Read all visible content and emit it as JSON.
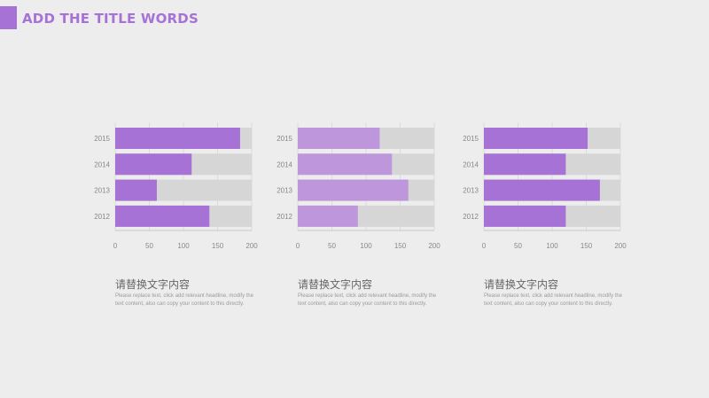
{
  "header": {
    "title": "ADD THE TITLE WORDS"
  },
  "colors": {
    "accent": "#a772d6",
    "track": "#d6d6d6",
    "axis": "#888888"
  },
  "chart_data": [
    {
      "type": "bar",
      "orientation": "horizontal",
      "categories": [
        "2015",
        "2014",
        "2013",
        "2012"
      ],
      "values": [
        183,
        112,
        61,
        138
      ],
      "xlim": [
        0,
        200
      ],
      "xticks": [
        0,
        50,
        100,
        150,
        200
      ],
      "bar_color": "#a772d6",
      "track_color": "#d6d6d6",
      "caption": {
        "title": "请替换文字内容",
        "body": "Please replace text, click add relevant headline, modify the text content, also can copy your content to this directly."
      }
    },
    {
      "type": "bar",
      "orientation": "horizontal",
      "categories": [
        "2015",
        "2014",
        "2013",
        "2012"
      ],
      "values": [
        120,
        138,
        162,
        88
      ],
      "xlim": [
        0,
        200
      ],
      "xticks": [
        0,
        50,
        100,
        150,
        200
      ],
      "bar_color": "#bd96db",
      "track_color": "#d6d6d6",
      "caption": {
        "title": "请替换文字内容",
        "body": "Please replace text, click add relevant headline, modify the text content, also can copy your content to this directly."
      }
    },
    {
      "type": "bar",
      "orientation": "horizontal",
      "categories": [
        "2015",
        "2014",
        "2013",
        "2012"
      ],
      "values": [
        152,
        120,
        170,
        120
      ],
      "xlim": [
        0,
        200
      ],
      "xticks": [
        0,
        50,
        100,
        150,
        200
      ],
      "bar_color": "#a772d6",
      "track_color": "#d6d6d6",
      "caption": {
        "title": "请替换文字内容",
        "body": "Please replace text, click add relevant headline, modify the text content, also can copy your content to this directly."
      }
    }
  ]
}
